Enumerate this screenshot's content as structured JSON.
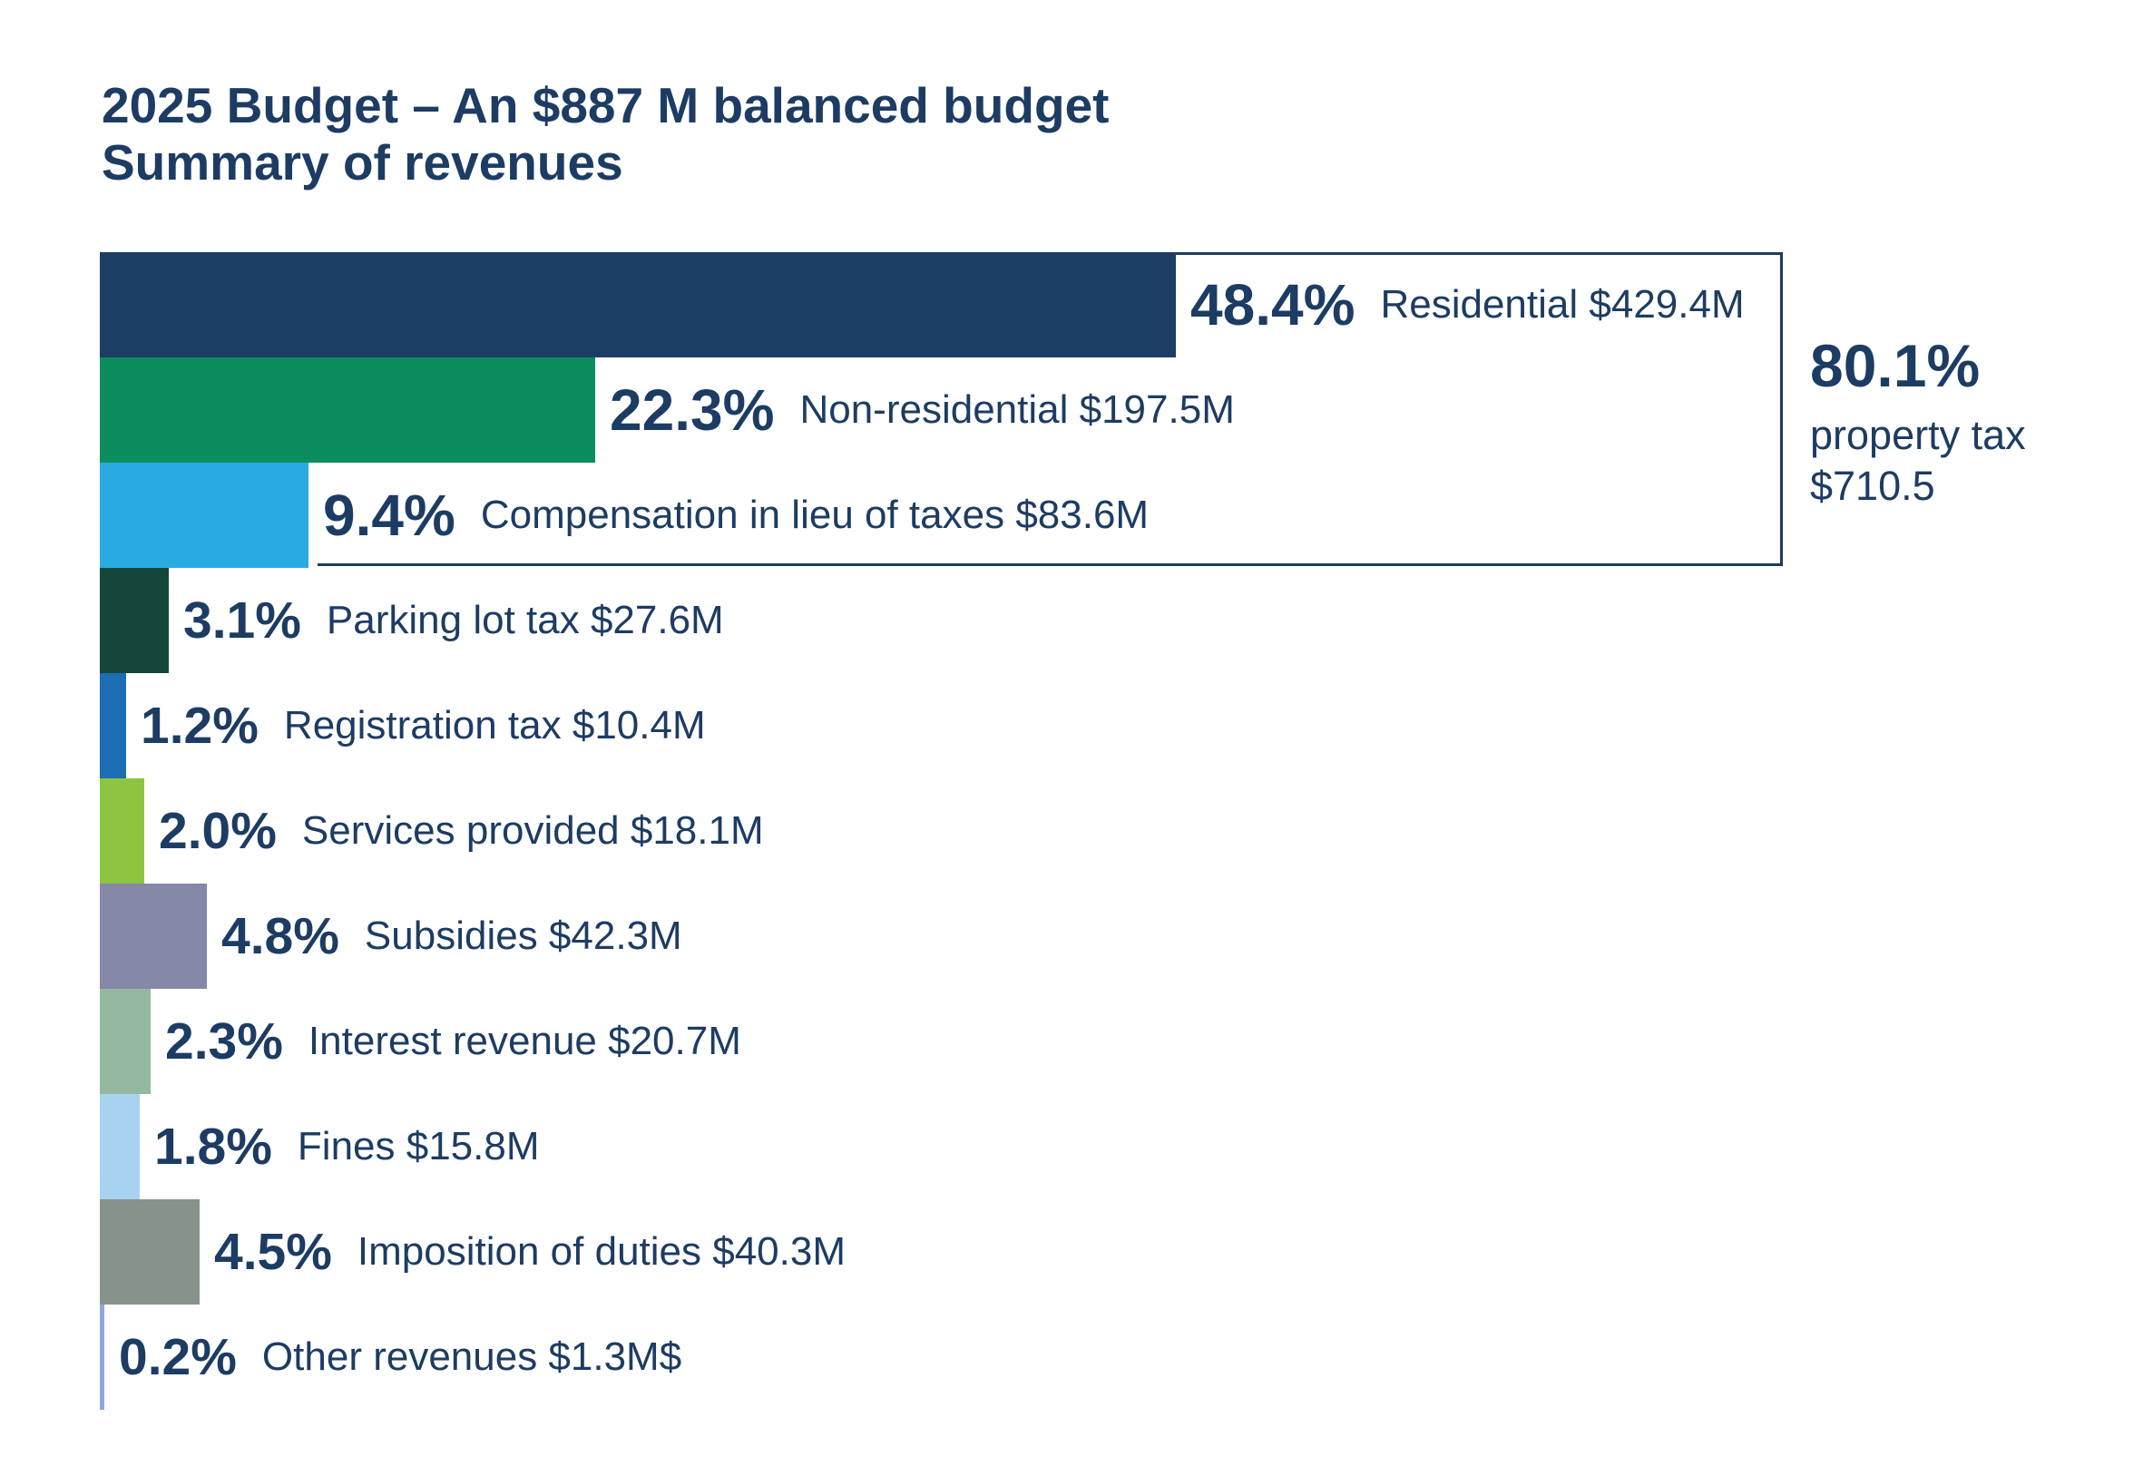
{
  "title": {
    "line1": "2025 Budget – An $887 M balanced budget",
    "line2": "Summary of revenues"
  },
  "annotation": {
    "percent": "80.1%",
    "label": "property tax",
    "amount": "$710.5"
  },
  "colors": {
    "text_navy": "#1d3c63",
    "bracket_border": "#1d3c63",
    "background": "#ffffff"
  },
  "chart_data": {
    "type": "bar",
    "orientation": "horizontal",
    "title": "2025 Budget – An $887 M balanced budget — Summary of revenues",
    "xlabel": "",
    "ylabel": "",
    "xlim": [
      0,
      48.4
    ],
    "grid": false,
    "legend": "none",
    "categories": [
      "Residential",
      "Non-residential",
      "Compensation in lieu of taxes",
      "Parking lot tax",
      "Registration tax",
      "Services provided",
      "Subsidies",
      "Interest revenue",
      "Fines",
      "Imposition of duties",
      "Other revenues"
    ],
    "values": [
      48.4,
      22.3,
      9.4,
      3.1,
      1.2,
      2.0,
      4.8,
      2.3,
      1.8,
      4.5,
      0.2
    ],
    "percent_labels": [
      "48.4%",
      "22.3%",
      "9.4%",
      "3.1%",
      "1.2%",
      "2.0%",
      "4.8%",
      "2.3%",
      "1.8%",
      "4.5%",
      "0.2%"
    ],
    "amounts": [
      "$429.4M",
      "$197.5M",
      "$83.6M",
      "$27.6M",
      "$10.4M",
      "$18.1M",
      "$42.3M",
      "$20.7M",
      "$15.8M",
      "$40.3M",
      "$1.3M$"
    ],
    "bar_colors": [
      "#1d3e64",
      "#0c8d5e",
      "#29abe2",
      "#15463a",
      "#1c6db4",
      "#8cc540",
      "#8588a6",
      "#94b9a0",
      "#a8d3f0",
      "#87938a",
      "#90a7d9"
    ],
    "group_annotation": {
      "applies_to_categories": [
        "Residential",
        "Non-residential",
        "Compensation in lieu of taxes"
      ],
      "percent": "80.1%",
      "label": "property tax",
      "amount": "$710.5"
    }
  }
}
